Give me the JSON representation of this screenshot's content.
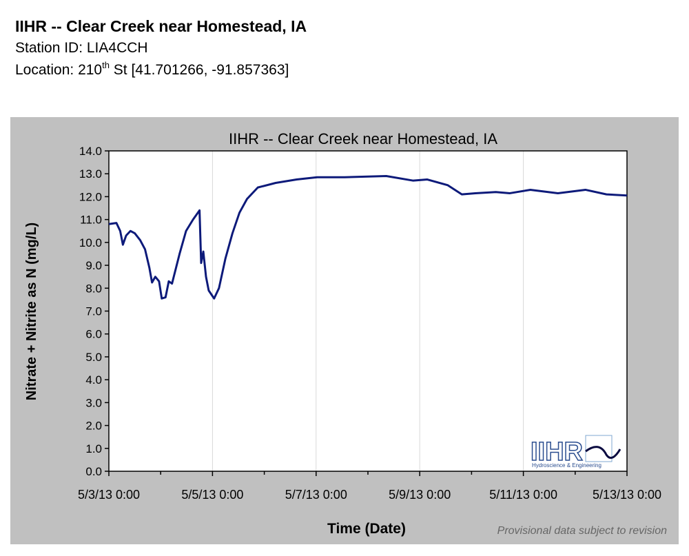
{
  "header": {
    "title": "IIHR -- Clear Creek near Homestead, IA",
    "station": "Station ID: LIA4CCH",
    "location": {
      "before": "Location: 210",
      "sup": "th",
      "after": " St [41.701266, -91.857363]"
    }
  },
  "chart_data": {
    "type": "line",
    "title": "IIHR -- Clear Creek near Homestead, IA",
    "xlabel": "Time (Date)",
    "ylabel": "Nitrate + Nitrite as N (mg/L)",
    "note": "Provisional data subject to revision",
    "logo": {
      "text": "IIHR",
      "subtitle": "Hydroscience & Engineering"
    },
    "xlim": [
      "2013-05-03T00:00",
      "2013-05-13T00:00"
    ],
    "xticks": [
      {
        "value": "2013-05-03T00:00",
        "label": "5/3/13 0:00"
      },
      {
        "value": "2013-05-05T00:00",
        "label": "5/5/13 0:00"
      },
      {
        "value": "2013-05-07T00:00",
        "label": "5/7/13 0:00"
      },
      {
        "value": "2013-05-09T00:00",
        "label": "5/9/13 0:00"
      },
      {
        "value": "2013-05-11T00:00",
        "label": "5/11/13 0:00"
      },
      {
        "value": "2013-05-13T00:00",
        "label": "5/13/13 0:00"
      }
    ],
    "xminorticks": [
      "2013-05-04T00:00",
      "2013-05-06T00:00",
      "2013-05-08T00:00",
      "2013-05-10T00:00",
      "2013-05-12T00:00"
    ],
    "ylim": [
      0,
      14
    ],
    "yticks": [
      {
        "value": 0,
        "label": "0.0"
      },
      {
        "value": 1,
        "label": "1.0"
      },
      {
        "value": 2,
        "label": "2.0"
      },
      {
        "value": 3,
        "label": "3.0"
      },
      {
        "value": 4,
        "label": "4.0"
      },
      {
        "value": 5,
        "label": "5.0"
      },
      {
        "value": 6,
        "label": "6.0"
      },
      {
        "value": 7,
        "label": "7.0"
      },
      {
        "value": 8,
        "label": "8.0"
      },
      {
        "value": 9,
        "label": "9.0"
      },
      {
        "value": 10,
        "label": "10.0"
      },
      {
        "value": 11,
        "label": "11.0"
      },
      {
        "value": 12,
        "label": "12.0"
      },
      {
        "value": 13,
        "label": "13.0"
      },
      {
        "value": 14,
        "label": "14.0"
      }
    ],
    "grid": true,
    "x": [
      "2013-05-03T00:00",
      "2013-05-03T03:30",
      "2013-05-03T05:15",
      "2013-05-03T06:30",
      "2013-05-03T08:00",
      "2013-05-03T10:00",
      "2013-05-03T12:00",
      "2013-05-03T14:30",
      "2013-05-03T16:45",
      "2013-05-03T18:45",
      "2013-05-03T20:00",
      "2013-05-03T21:30",
      "2013-05-03T23:15",
      "2013-05-04T00:30",
      "2013-05-04T02:15",
      "2013-05-04T03:45",
      "2013-05-04T05:15",
      "2013-05-04T08:45",
      "2013-05-04T11:45",
      "2013-05-04T15:00",
      "2013-05-04T18:00",
      "2013-05-04T18:45",
      "2013-05-04T19:45",
      "2013-05-04T21:00",
      "2013-05-04T22:15",
      "2013-05-05T00:45",
      "2013-05-05T03:00",
      "2013-05-05T06:00",
      "2013-05-05T09:15",
      "2013-05-05T12:30",
      "2013-05-05T16:00",
      "2013-05-05T21:00",
      "2013-05-06T05:15",
      "2013-05-06T15:00",
      "2013-05-07T00:30",
      "2013-05-07T13:15",
      "2013-05-08T08:30",
      "2013-05-08T21:00",
      "2013-05-09T03:30",
      "2013-05-09T13:00",
      "2013-05-09T19:30",
      "2013-05-10T01:45",
      "2013-05-10T11:15",
      "2013-05-10T17:45",
      "2013-05-11T03:15",
      "2013-05-11T16:00",
      "2013-05-12T04:45",
      "2013-05-12T14:30",
      "2013-05-13T00:00"
    ],
    "series": [
      {
        "name": "Nitrate + Nitrite as N",
        "color": "#0d1a7a",
        "values": [
          10.8,
          10.85,
          10.5,
          9.9,
          10.3,
          10.5,
          10.4,
          10.1,
          9.7,
          8.9,
          8.25,
          8.5,
          8.3,
          7.55,
          7.6,
          8.3,
          8.2,
          9.5,
          10.5,
          11.0,
          11.4,
          9.1,
          9.6,
          8.5,
          7.9,
          7.55,
          8.0,
          9.3,
          10.4,
          11.3,
          11.9,
          12.4,
          12.6,
          12.75,
          12.85,
          12.85,
          12.9,
          12.7,
          12.75,
          12.5,
          12.1,
          12.15,
          12.2,
          12.15,
          12.3,
          12.15,
          12.3,
          12.1,
          12.05
        ]
      }
    ]
  }
}
